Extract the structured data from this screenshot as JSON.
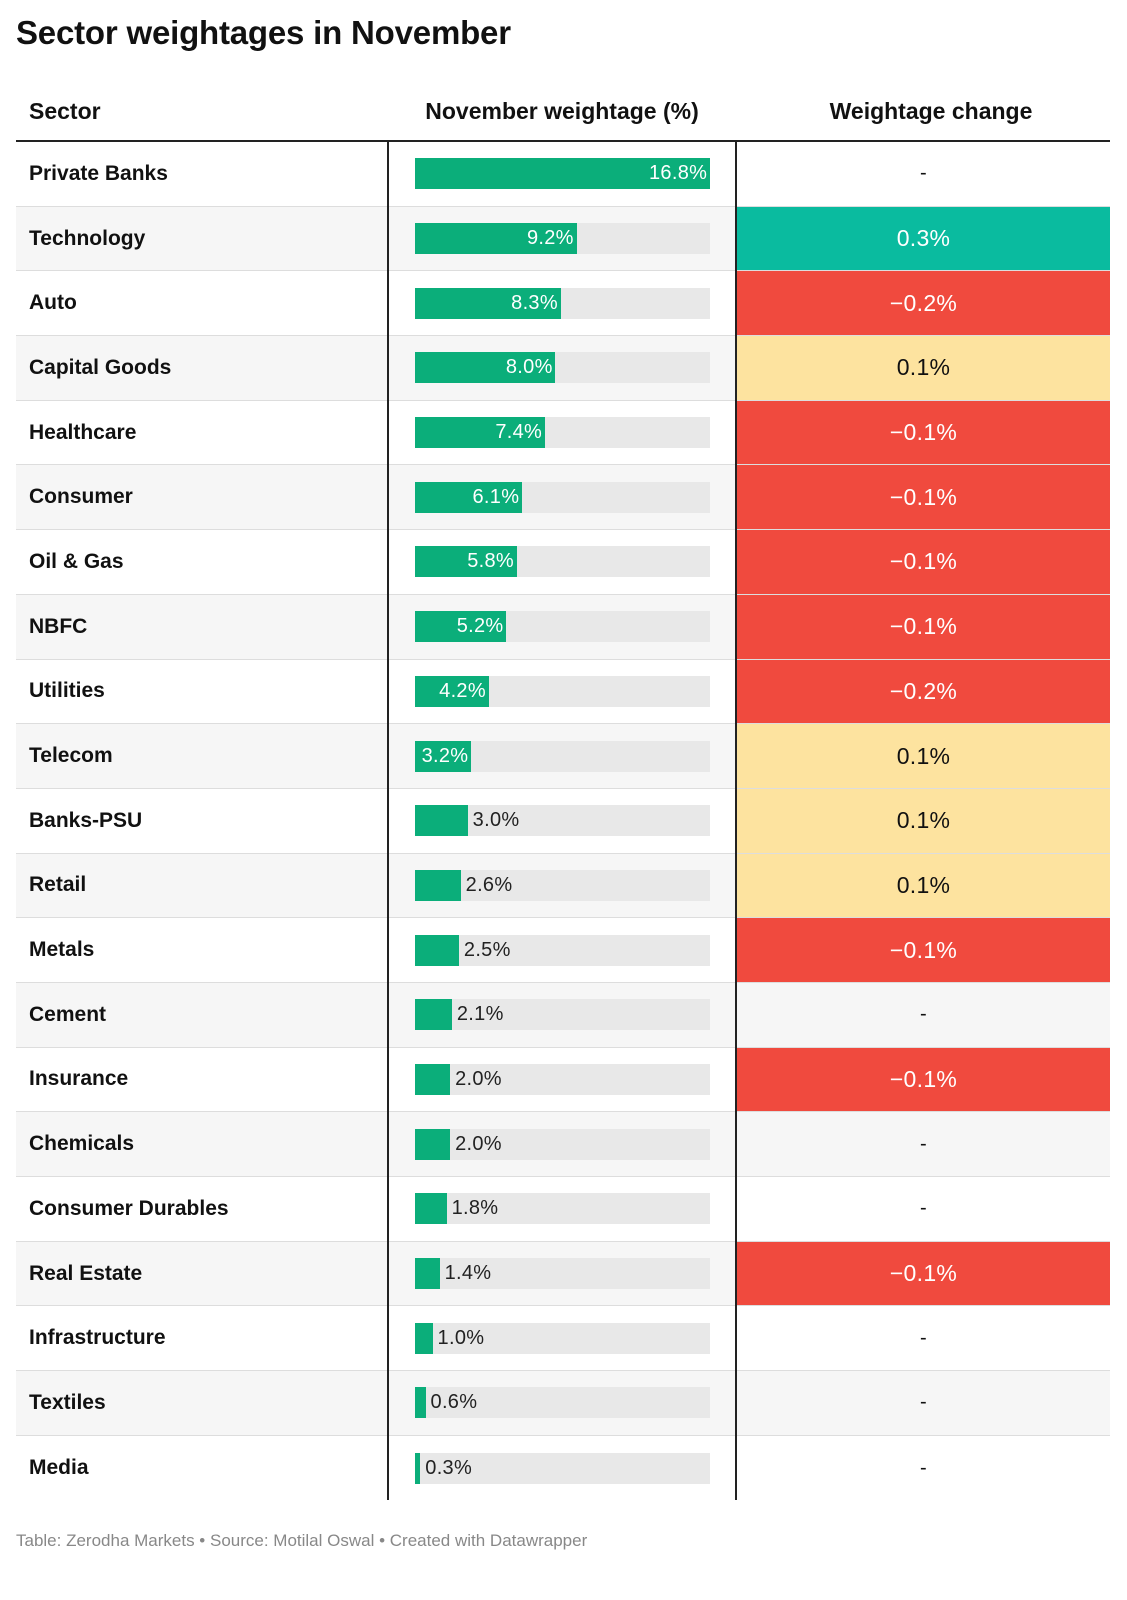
{
  "title": "Sector weightages in November",
  "columns": {
    "sector": "Sector",
    "weight": "November weightage (%)",
    "change": "Weightage change"
  },
  "chart_data": {
    "type": "table",
    "title": "Sector weightages in November",
    "columns": [
      "Sector",
      "November weightage (%)",
      "Weightage change"
    ],
    "bar_max": 16.8,
    "rows": [
      {
        "sector": "Private Banks",
        "weight": 16.8,
        "weight_label": "16.8%",
        "change": "-"
      },
      {
        "sector": "Technology",
        "weight": 9.2,
        "weight_label": "9.2%",
        "change": "0.3%"
      },
      {
        "sector": "Auto",
        "weight": 8.3,
        "weight_label": "8.3%",
        "change": "−0.2%"
      },
      {
        "sector": "Capital Goods",
        "weight": 8.0,
        "weight_label": "8.0%",
        "change": "0.1%"
      },
      {
        "sector": "Healthcare",
        "weight": 7.4,
        "weight_label": "7.4%",
        "change": "−0.1%"
      },
      {
        "sector": "Consumer",
        "weight": 6.1,
        "weight_label": "6.1%",
        "change": "−0.1%"
      },
      {
        "sector": "Oil & Gas",
        "weight": 5.8,
        "weight_label": "5.8%",
        "change": "−0.1%"
      },
      {
        "sector": "NBFC",
        "weight": 5.2,
        "weight_label": "5.2%",
        "change": "−0.1%"
      },
      {
        "sector": "Utilities",
        "weight": 4.2,
        "weight_label": "4.2%",
        "change": "−0.2%"
      },
      {
        "sector": "Telecom",
        "weight": 3.2,
        "weight_label": "3.2%",
        "change": "0.1%"
      },
      {
        "sector": "Banks-PSU",
        "weight": 3.0,
        "weight_label": "3.0%",
        "change": "0.1%"
      },
      {
        "sector": "Retail",
        "weight": 2.6,
        "weight_label": "2.6%",
        "change": "0.1%"
      },
      {
        "sector": "Metals",
        "weight": 2.5,
        "weight_label": "2.5%",
        "change": "−0.1%"
      },
      {
        "sector": "Cement",
        "weight": 2.1,
        "weight_label": "2.1%",
        "change": "-"
      },
      {
        "sector": "Insurance",
        "weight": 2.0,
        "weight_label": "2.0%",
        "change": "−0.1%"
      },
      {
        "sector": "Chemicals",
        "weight": 2.0,
        "weight_label": "2.0%",
        "change": "-"
      },
      {
        "sector": "Consumer Durables",
        "weight": 1.8,
        "weight_label": "1.8%",
        "change": "-"
      },
      {
        "sector": "Real Estate",
        "weight": 1.4,
        "weight_label": "1.4%",
        "change": "−0.1%"
      },
      {
        "sector": "Infrastructure",
        "weight": 1.0,
        "weight_label": "1.0%",
        "change": "-"
      },
      {
        "sector": "Textiles",
        "weight": 0.6,
        "weight_label": "0.6%",
        "change": "-"
      },
      {
        "sector": "Media",
        "weight": 0.3,
        "weight_label": "0.3%",
        "change": "-"
      }
    ]
  },
  "colors": {
    "bar": "#0bae7a",
    "bar_track": "#e8e8e8",
    "change_strong_positive": "#0abb9f",
    "change_positive": "#fde39f",
    "change_negative": "#f04a3e"
  },
  "footer": "Table: Zerodha Markets • Source: Motilal Oswal • Created with Datawrapper"
}
